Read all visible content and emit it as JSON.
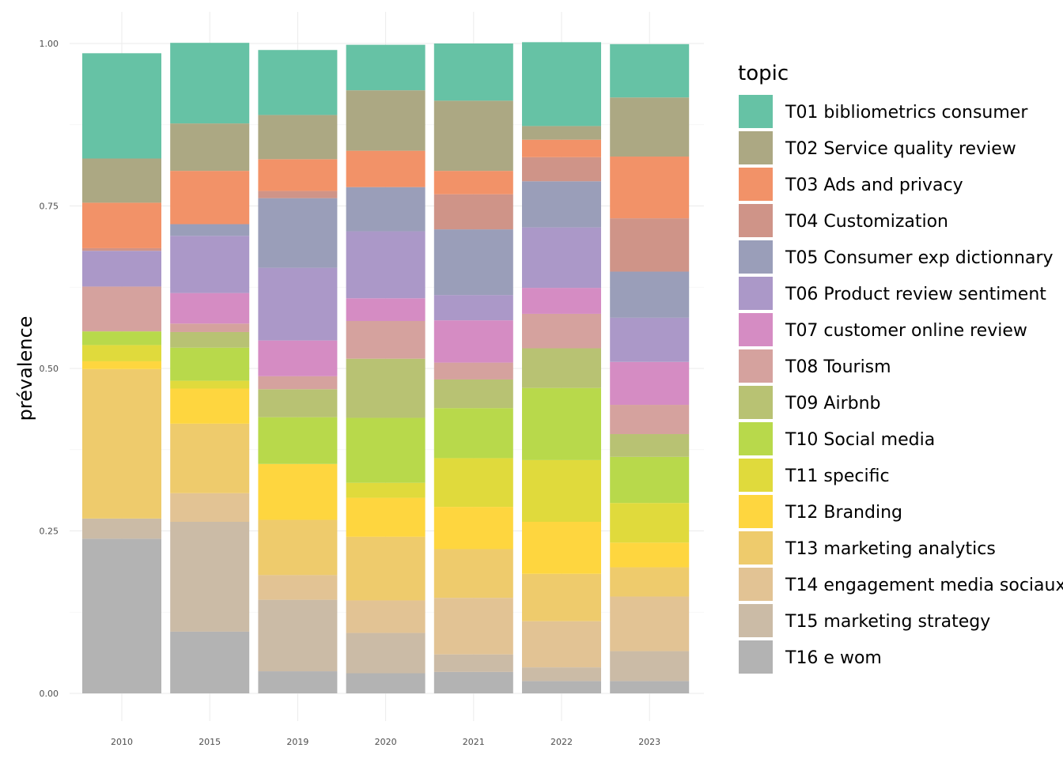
{
  "chart_data": {
    "type": "bar",
    "stacked": true,
    "xlabel": "",
    "ylabel": "prévalence",
    "ylim": [
      0,
      1
    ],
    "y_ticks": [
      "0.00",
      "0.25",
      "0.50",
      "0.75",
      "1.00"
    ],
    "grid": true,
    "legend_title": "topic",
    "legend_position": "right",
    "categories": [
      "2010",
      "2015",
      "2019",
      "2020",
      "2021",
      "2022",
      "2023"
    ],
    "series": [
      {
        "name": "T16 e wom",
        "color": "#b3b3b3",
        "values": [
          0.238,
          0.095,
          0.034,
          0.031,
          0.033,
          0.019,
          0.019
        ]
      },
      {
        "name": "T15 marketing strategy",
        "color": "#cbbba6",
        "values": [
          0.031,
          0.169,
          0.11,
          0.062,
          0.027,
          0.021,
          0.046
        ]
      },
      {
        "name": "T14 engagement media sociaux",
        "color": "#e2c394",
        "values": [
          0.0,
          0.044,
          0.038,
          0.05,
          0.087,
          0.071,
          0.084
        ]
      },
      {
        "name": "T13 marketing analytics",
        "color": "#eecb6c",
        "values": [
          0.23,
          0.107,
          0.085,
          0.098,
          0.075,
          0.073,
          0.045
        ]
      },
      {
        "name": "T12 Branding",
        "color": "#fed63f",
        "values": [
          0.012,
          0.054,
          0.086,
          0.06,
          0.065,
          0.08,
          0.038
        ]
      },
      {
        "name": "T11 specific",
        "color": "#e0da3c",
        "values": [
          0.025,
          0.012,
          0.0,
          0.023,
          0.075,
          0.095,
          0.061
        ]
      },
      {
        "name": "T10 Social media",
        "color": "#b8d94b",
        "values": [
          0.021,
          0.051,
          0.072,
          0.1,
          0.077,
          0.111,
          0.071
        ]
      },
      {
        "name": "T09 Airbnb",
        "color": "#b8c273",
        "values": [
          0.0,
          0.024,
          0.043,
          0.091,
          0.044,
          0.061,
          0.035
        ]
      },
      {
        "name": "T08 Tourism",
        "color": "#d5a29e",
        "values": [
          0.069,
          0.013,
          0.02,
          0.058,
          0.026,
          0.053,
          0.045
        ]
      },
      {
        "name": "T07 customer online review",
        "color": "#d58cc3",
        "values": [
          0.0,
          0.047,
          0.055,
          0.035,
          0.065,
          0.04,
          0.066
        ]
      },
      {
        "name": "T06 Product review sentiment",
        "color": "#ab98c8",
        "values": [
          0.055,
          0.088,
          0.112,
          0.103,
          0.039,
          0.093,
          0.068
        ]
      },
      {
        "name": "T05 Consumer exp dictionnary",
        "color": "#9a9eb9",
        "values": [
          0.0,
          0.018,
          0.107,
          0.068,
          0.101,
          0.071,
          0.071
        ]
      },
      {
        "name": "T04 Customization",
        "color": "#cf9488",
        "values": [
          0.004,
          0.0,
          0.011,
          0.0,
          0.054,
          0.037,
          0.082
        ]
      },
      {
        "name": "T03 Ads and privacy",
        "color": "#f29268",
        "values": [
          0.07,
          0.082,
          0.049,
          0.056,
          0.036,
          0.027,
          0.095
        ]
      },
      {
        "name": "T02 Service quality review",
        "color": "#aca883",
        "values": [
          0.068,
          0.073,
          0.068,
          0.093,
          0.108,
          0.021,
          0.091
        ]
      },
      {
        "name": "T01 bibliometrics consumer",
        "color": "#66c2a5",
        "values": [
          0.162,
          0.124,
          0.1,
          0.07,
          0.088,
          0.129,
          0.082
        ]
      }
    ]
  }
}
